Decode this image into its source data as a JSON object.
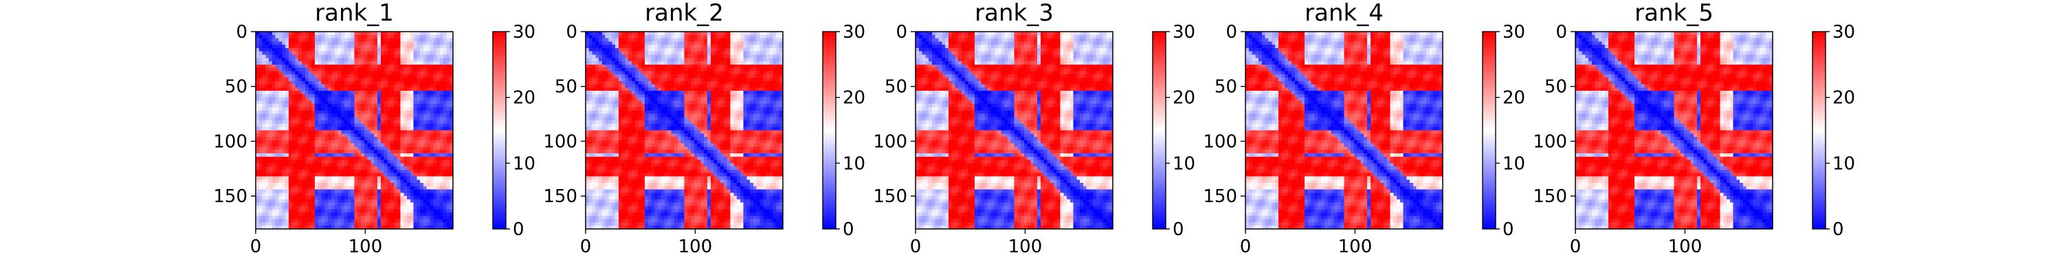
{
  "chart_data": [
    {
      "type": "heatmap",
      "title": "rank_1",
      "xlim": [
        0,
        180
      ],
      "ylim": [
        180,
        0
      ],
      "xticks": [
        "0",
        "100"
      ],
      "yticks": [
        "0",
        "50",
        "100",
        "150"
      ],
      "colorbar": {
        "min": 0,
        "max": 30,
        "ticks": [
          "0",
          "10",
          "20",
          "30"
        ],
        "colors": [
          "#0000ff",
          "#ffffff",
          "#ff0000"
        ]
      }
    },
    {
      "type": "heatmap",
      "title": "rank_2",
      "xlim": [
        0,
        180
      ],
      "ylim": [
        180,
        0
      ],
      "xticks": [
        "0",
        "100"
      ],
      "yticks": [
        "0",
        "50",
        "100",
        "150"
      ],
      "colorbar": {
        "min": 0,
        "max": 30,
        "ticks": [
          "0",
          "10",
          "20",
          "30"
        ],
        "colors": [
          "#0000ff",
          "#ffffff",
          "#ff0000"
        ]
      }
    },
    {
      "type": "heatmap",
      "title": "rank_3",
      "xlim": [
        0,
        180
      ],
      "ylim": [
        180,
        0
      ],
      "xticks": [
        "0",
        "100"
      ],
      "yticks": [
        "0",
        "50",
        "100",
        "150"
      ],
      "colorbar": {
        "min": 0,
        "max": 30,
        "ticks": [
          "0",
          "10",
          "20",
          "30"
        ],
        "colors": [
          "#0000ff",
          "#ffffff",
          "#ff0000"
        ]
      }
    },
    {
      "type": "heatmap",
      "title": "rank_4",
      "xlim": [
        0,
        180
      ],
      "ylim": [
        180,
        0
      ],
      "xticks": [
        "0",
        "100"
      ],
      "yticks": [
        "0",
        "50",
        "100",
        "150"
      ],
      "colorbar": {
        "min": 0,
        "max": 30,
        "ticks": [
          "0",
          "10",
          "20",
          "30"
        ],
        "colors": [
          "#0000ff",
          "#ffffff",
          "#ff0000"
        ]
      }
    },
    {
      "type": "heatmap",
      "title": "rank_5",
      "xlim": [
        0,
        180
      ],
      "ylim": [
        180,
        0
      ],
      "xticks": [
        "0",
        "100"
      ],
      "yticks": [
        "0",
        "50",
        "100",
        "150"
      ],
      "colorbar": {
        "min": 0,
        "max": 30,
        "ticks": [
          "0",
          "10",
          "20",
          "30"
        ],
        "colors": [
          "#0000ff",
          "#ffffff",
          "#ff0000"
        ]
      }
    }
  ]
}
